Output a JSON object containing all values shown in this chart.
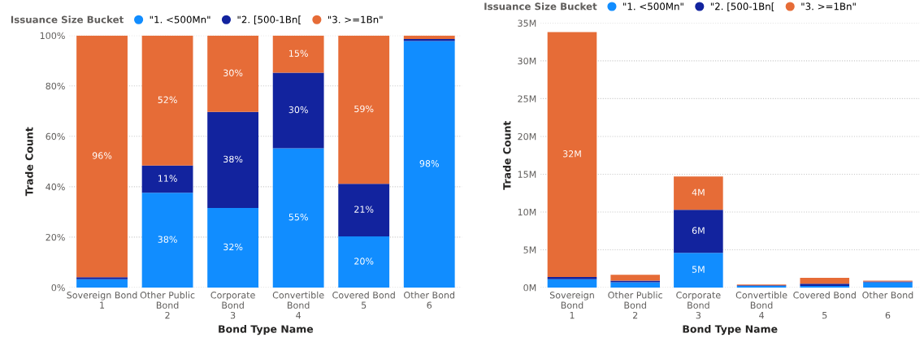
{
  "chart_data": [
    {
      "type": "bar",
      "stacked": true,
      "legend_title": "Issuance Size Bucket",
      "legend": "top left",
      "xlabel": "Bond Type Name",
      "ylabel": "Trade Count",
      "grid": "y",
      "categories": [
        "Sovereign Bond\n1",
        "Other Public\nBond\n2",
        "Corporate\nBond\n3",
        "Convertible\nBond\n4",
        "Covered Bond\n5",
        "Other Bond\n6"
      ],
      "ylim": [
        0,
        100
      ],
      "yticks": [
        {
          "value": 0,
          "label": "0%"
        },
        {
          "value": 20,
          "label": "20%"
        },
        {
          "value": 40,
          "label": "40%"
        },
        {
          "value": 60,
          "label": "60%"
        },
        {
          "value": 80,
          "label": "80%"
        },
        {
          "value": 100,
          "label": "100%"
        }
      ],
      "series": [
        {
          "name": "\"1. <500Mn\"",
          "color": "#118dff",
          "values": [
            3.3,
            37.6,
            31.6,
            55.3,
            20.3,
            97.8
          ],
          "value_labels": [
            null,
            "38%",
            "32%",
            "55%",
            "20%",
            "98%"
          ]
        },
        {
          "name": "\"2. [500-1Bn[",
          "color": "#12239e",
          "values": [
            0.8,
            10.8,
            38.1,
            29.9,
            20.9,
            0.8
          ],
          "value_labels": [
            null,
            "11%",
            "38%",
            "30%",
            "21%",
            null
          ]
        },
        {
          "name": "\"3. >=1Bn\"",
          "color": "#e66c37",
          "values": [
            95.9,
            51.6,
            30.3,
            14.8,
            58.8,
            1.4
          ],
          "value_labels": [
            "96%",
            "52%",
            "30%",
            "15%",
            "59%",
            null
          ]
        }
      ]
    },
    {
      "type": "bar",
      "stacked": true,
      "legend_title": "Issuance Size Bucket",
      "legend": "top left",
      "xlabel": "Bond Type Name",
      "ylabel": "Trade Count",
      "grid": "y",
      "categories": [
        "Sovereign\nBond\n1",
        "Other Public\nBond\n2",
        "Corporate\nBond\n3",
        "Convertible\nBond\n4",
        "Covered Bond\n\n5",
        "Other Bond\n\n6"
      ],
      "ylim": [
        0,
        35
      ],
      "yticks": [
        {
          "value": 0,
          "label": "0M"
        },
        {
          "value": 5,
          "label": "5M"
        },
        {
          "value": 10,
          "label": "10M"
        },
        {
          "value": 15,
          "label": "15M"
        },
        {
          "value": 20,
          "label": "20M"
        },
        {
          "value": 25,
          "label": "25M"
        },
        {
          "value": 30,
          "label": "30M"
        },
        {
          "value": 35,
          "label": "35M"
        }
      ],
      "series": [
        {
          "name": "\"1. <500Mn\"",
          "color": "#118dff",
          "values": [
            1.1,
            0.7,
            4.6,
            0.2,
            0.2,
            0.7
          ],
          "value_labels": [
            null,
            null,
            "5M",
            null,
            null,
            null
          ]
        },
        {
          "name": "\"2. [500-1Bn[",
          "color": "#12239e",
          "values": [
            0.3,
            0.2,
            5.7,
            0.1,
            0.3,
            0.1
          ],
          "value_labels": [
            null,
            null,
            "6M",
            null,
            null,
            null
          ]
        },
        {
          "name": "\"3. >=1Bn\"",
          "color": "#e66c37",
          "values": [
            32.4,
            0.8,
            4.4,
            0.1,
            0.8,
            0.1
          ],
          "value_labels": [
            "32M",
            null,
            "4M",
            null,
            null,
            null
          ]
        }
      ]
    }
  ]
}
